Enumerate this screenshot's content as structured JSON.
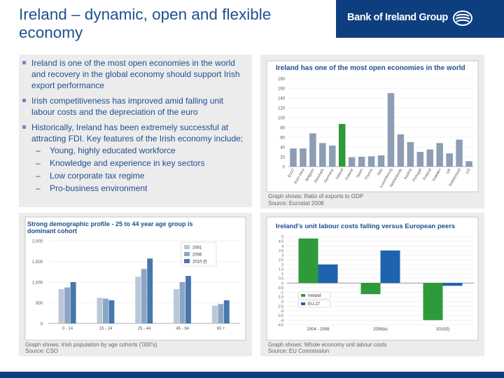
{
  "slide": {
    "title": "Ireland – dynamic, open and flexible economy",
    "brand": "Bank of Ireland Group",
    "bullets": [
      "Ireland is one of the most open economies in the world and recovery in the global economy should support Irish export performance",
      "Irish competitiveness has improved amid falling unit labour costs and the depreciation of the euro",
      "Historically, Ireland has been extremely successful at attracting FDI.  Key features of the Irish economy include;"
    ],
    "subitems": [
      "Young, highly educated workforce",
      "Knowledge and experience in key sectors",
      "Low corporate tax regime",
      "Pro-business environment"
    ],
    "colors": {
      "brand": "#0d3f80",
      "title": "#1e4f90",
      "panel_bg": "#ececec"
    }
  },
  "chart_data": [
    {
      "type": "bar",
      "title": "Ireland has one of the most open economies in the world",
      "yticks": [
        "0",
        "20",
        "40",
        "60",
        "80",
        "100",
        "120",
        "140",
        "160",
        "180"
      ],
      "ylim": [
        0,
        180
      ],
      "categories": [
        "EU27",
        "Euro area",
        "Belgium",
        "Denmark",
        "Germany",
        "Ireland",
        "Greece",
        "Spain",
        "France",
        "Italy",
        "Luxembourg",
        "Netherlands",
        "Austria",
        "Portugal",
        "Finland",
        "Sweden",
        "UK",
        "Switzerland",
        "US"
      ],
      "values": [
        37,
        37,
        68,
        48,
        43,
        87,
        19,
        20,
        21,
        23,
        150,
        66,
        50,
        30,
        35,
        48,
        27,
        55,
        11
      ],
      "highlight": "Ireland",
      "colors": {
        "bar": "#8c9db4",
        "highlight": "#2e9a3a"
      },
      "caption": [
        "Graph shows: Ratio of exports to GDP",
        "Source: Eurostat 2008"
      ]
    },
    {
      "type": "bar",
      "title": "Strong demographic profile - 25 to 44 year age group is dominant cohort",
      "yticks": [
        "0",
        "500",
        "1,000",
        "1,500",
        "2,000"
      ],
      "ylim": [
        0,
        2000
      ],
      "categories": [
        "0 - 14",
        "15 - 24",
        "25 - 44",
        "45 - 64",
        "65 +"
      ],
      "series": [
        {
          "name": "2001",
          "values": [
            830,
            620,
            1130,
            830,
            430
          ],
          "color": "#b9c8d8"
        },
        {
          "name": "2006",
          "values": [
            870,
            600,
            1320,
            1000,
            470
          ],
          "color": "#8ba6c3"
        },
        {
          "name": "2010 (f)",
          "values": [
            1000,
            560,
            1570,
            1150,
            560
          ],
          "color": "#4677ad"
        }
      ],
      "caption": [
        "Graph shows: Irish population by age cohorts ('000's)",
        "Source: CSO"
      ]
    },
    {
      "type": "bar",
      "title": "Ireland's unit labour costs falling versus European peers",
      "yticks": [
        "5",
        "4.5",
        "4",
        "3.5",
        "3",
        "2.5",
        "2",
        "1.5",
        "1",
        "0.5",
        "0",
        "-0.5",
        "-1",
        "-1.5",
        "-2",
        "-2.5",
        "-3",
        "-3.5",
        "-4",
        "-4.5"
      ],
      "ylim": [
        -4.5,
        5
      ],
      "categories": [
        "2004 - 2008",
        "2009(e)",
        "2010(f)"
      ],
      "series": [
        {
          "name": "Ireland",
          "values": [
            4.8,
            -1.2,
            -4.0
          ],
          "color": "#2e9a3a"
        },
        {
          "name": "EU-27",
          "values": [
            2.0,
            3.5,
            -0.3
          ],
          "color": "#1e63b0"
        }
      ],
      "caption": [
        "Graph shows: Whole economy unit labour costs",
        "Source: EU Commission"
      ]
    }
  ]
}
